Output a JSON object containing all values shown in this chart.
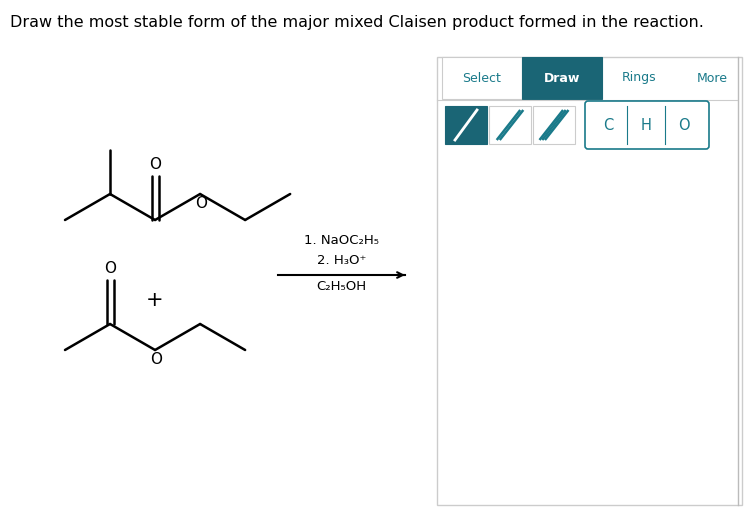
{
  "title": "Draw the most stable form of the major mixed Claisen product formed in the reaction.",
  "title_fontsize": 11.5,
  "background_color": "#ffffff",
  "panel_border": "#cccccc",
  "teal": "#1a7a8a",
  "teal_dark": "#1a6575",
  "text_color": "#000000",
  "select_text": "Select",
  "draw_text": "Draw",
  "rings_text": "Rings",
  "more_text": "More",
  "reaction_step1": "1. NaOC₂H₅",
  "reaction_step2": "2. H₃O⁺",
  "reaction_step3": "C₂H₅OH",
  "plus_sign": "+",
  "arrow_color": "#000000",
  "bond_color": "#000000",
  "bond_width": 1.8
}
